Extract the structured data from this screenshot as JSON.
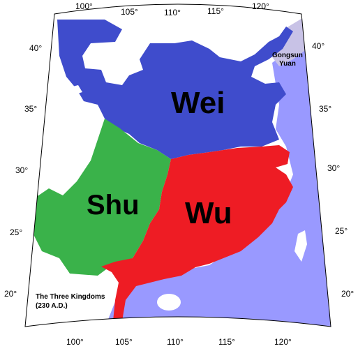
{
  "map": {
    "kingdoms": {
      "wei": {
        "label": "Wei",
        "color": "#3f4ccc"
      },
      "shu": {
        "label": "Shu",
        "color": "#3ab24a"
      },
      "wu": {
        "label": "Wu",
        "color": "#ee1c24"
      }
    },
    "gongsun": {
      "line1": "Gongsun",
      "line2": "Yuan",
      "color": "#c8c2e6"
    },
    "sea_color": "#9999ff",
    "caption": {
      "line1": "The Three Kingdoms",
      "line2": "(230 A.D.)"
    },
    "longitude_ticks_top": [
      "100°",
      "105°",
      "110°",
      "115°",
      "120°"
    ],
    "longitude_ticks_bottom": [
      "100°",
      "105°",
      "110°",
      "115°",
      "120°"
    ],
    "latitude_ticks_left": [
      "40°",
      "35°",
      "30°",
      "25°",
      "20°"
    ],
    "latitude_ticks_right": [
      "40°",
      "35°",
      "30°",
      "25°",
      "20°"
    ]
  }
}
